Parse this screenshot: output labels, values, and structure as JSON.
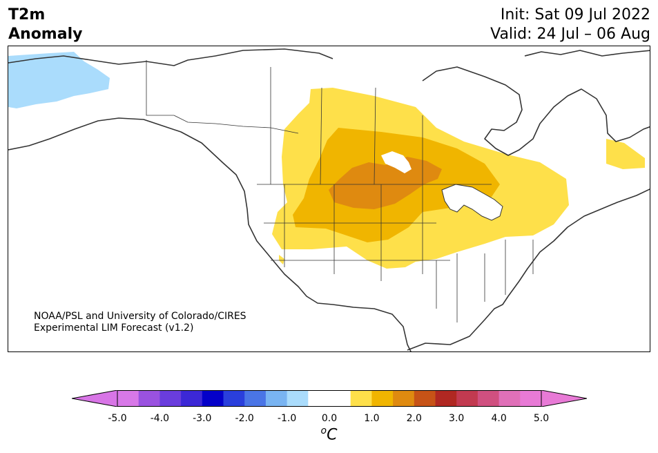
{
  "title": {
    "line1": "T2m",
    "line2": "Anomaly"
  },
  "dates": {
    "init": "Init: Sat 09 Jul 2022",
    "valid": "Valid: 24 Jul – 06 Aug"
  },
  "credit": {
    "line1": "NOAA/PSL and University of Colorado/CIRES",
    "line2": "Experimental LIM Forecast (v1.2)"
  },
  "colorbar": {
    "unit_base": "o",
    "unit_letter": "C",
    "ticks": [
      "-5.0",
      "-4.0",
      "-3.0",
      "-2.0",
      "-1.0",
      "0.0",
      "1.0",
      "2.0",
      "3.0",
      "4.0",
      "5.0"
    ],
    "under_color": "#d875e6",
    "over_color": "#e87ad6",
    "colors": [
      "#d878e8",
      "#9a52e0",
      "#6a3ddd",
      "#3c28d6",
      "#0400c9",
      "#2a3fdc",
      "#4a75e6",
      "#79b4f2",
      "#aadcfc",
      "#ffffff",
      "#ffffff",
      "#fee04a",
      "#f0b500",
      "#df8a10",
      "#c75317",
      "#b02822",
      "#c23a50",
      "#d05080",
      "#e070b8",
      "#e87ad6"
    ]
  },
  "map_colors": {
    "cool": "#aadcfc",
    "warm1": "#fee04a",
    "warm2": "#f0b500",
    "warm3": "#df8a10",
    "land_line": "#333333"
  }
}
